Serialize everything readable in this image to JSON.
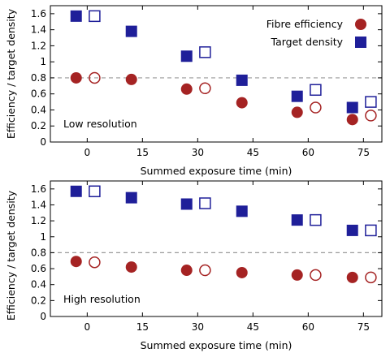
{
  "colors": {
    "efficiency": "#a52323",
    "density": "#1f1f99",
    "reference_line": "#9a9a9a",
    "axis": "#000000"
  },
  "chart_data": [
    {
      "type": "scatter",
      "panel_label": "Low resolution",
      "xlabel": "Summed exposure time (min)",
      "ylabel": "Efficiency / target density",
      "xlim": [
        -10,
        80
      ],
      "ylim": [
        0,
        1.7
      ],
      "xticks": [
        0,
        15,
        30,
        45,
        60,
        75
      ],
      "xtick_labels": [
        "0",
        "15",
        "30",
        "45",
        "60",
        "75"
      ],
      "yticks": [
        0,
        0.2,
        0.4,
        0.6,
        0.8,
        1,
        1.2,
        1.4,
        1.6
      ],
      "ytick_labels": [
        "0",
        "0.2",
        "0.4",
        "0.6",
        "0.8",
        "1",
        "1.2",
        "1.4",
        "1.6"
      ],
      "reference_line_y": 0.8,
      "legend": [
        "Fibre efficiency",
        "Target density"
      ],
      "legend_position": "top-right",
      "series": [
        {
          "name": "Fibre efficiency",
          "marker": "filled-circle",
          "color": "#a52323",
          "x": [
            -3,
            12,
            27,
            42,
            57,
            72
          ],
          "y": [
            0.8,
            0.78,
            0.66,
            0.49,
            0.37,
            0.28
          ]
        },
        {
          "marker": "open-circle",
          "color": "#a52323",
          "x": [
            2,
            32,
            62,
            77
          ],
          "y": [
            0.8,
            0.67,
            0.43,
            0.33
          ]
        },
        {
          "name": "Target density",
          "marker": "filled-square",
          "color": "#1f1f99",
          "x": [
            -3,
            12,
            27,
            42,
            57,
            72
          ],
          "y": [
            1.57,
            1.38,
            1.07,
            0.77,
            0.57,
            0.43
          ]
        },
        {
          "marker": "open-square",
          "color": "#1f1f99",
          "x": [
            2,
            32,
            62,
            77
          ],
          "y": [
            1.57,
            1.12,
            0.65,
            0.5
          ]
        }
      ]
    },
    {
      "type": "scatter",
      "panel_label": "High resolution",
      "xlabel": "Summed exposure time (min)",
      "ylabel": "Efficiency / target density",
      "xlim": [
        -10,
        80
      ],
      "ylim": [
        0,
        1.7
      ],
      "xticks": [
        0,
        15,
        30,
        45,
        60,
        75
      ],
      "xtick_labels": [
        "0",
        "15",
        "30",
        "45",
        "60",
        "75"
      ],
      "yticks": [
        0,
        0.2,
        0.4,
        0.6,
        0.8,
        1,
        1.2,
        1.4,
        1.6
      ],
      "ytick_labels": [
        "0",
        "0.2",
        "0.4",
        "0.6",
        "0.8",
        "1",
        "1.2",
        "1.4",
        "1.6"
      ],
      "reference_line_y": 0.8,
      "series": [
        {
          "marker": "filled-circle",
          "color": "#a52323",
          "x": [
            -3,
            12,
            27,
            42,
            57,
            72
          ],
          "y": [
            0.69,
            0.62,
            0.58,
            0.55,
            0.52,
            0.49
          ]
        },
        {
          "marker": "open-circle",
          "color": "#a52323",
          "x": [
            2,
            32,
            62,
            77
          ],
          "y": [
            0.68,
            0.58,
            0.52,
            0.49
          ]
        },
        {
          "marker": "filled-square",
          "color": "#1f1f99",
          "x": [
            -3,
            12,
            27,
            42,
            57,
            72
          ],
          "y": [
            1.57,
            1.49,
            1.41,
            1.32,
            1.21,
            1.08
          ]
        },
        {
          "marker": "open-square",
          "color": "#1f1f99",
          "x": [
            2,
            32,
            62,
            77
          ],
          "y": [
            1.57,
            1.42,
            1.21,
            1.08
          ]
        }
      ]
    }
  ]
}
